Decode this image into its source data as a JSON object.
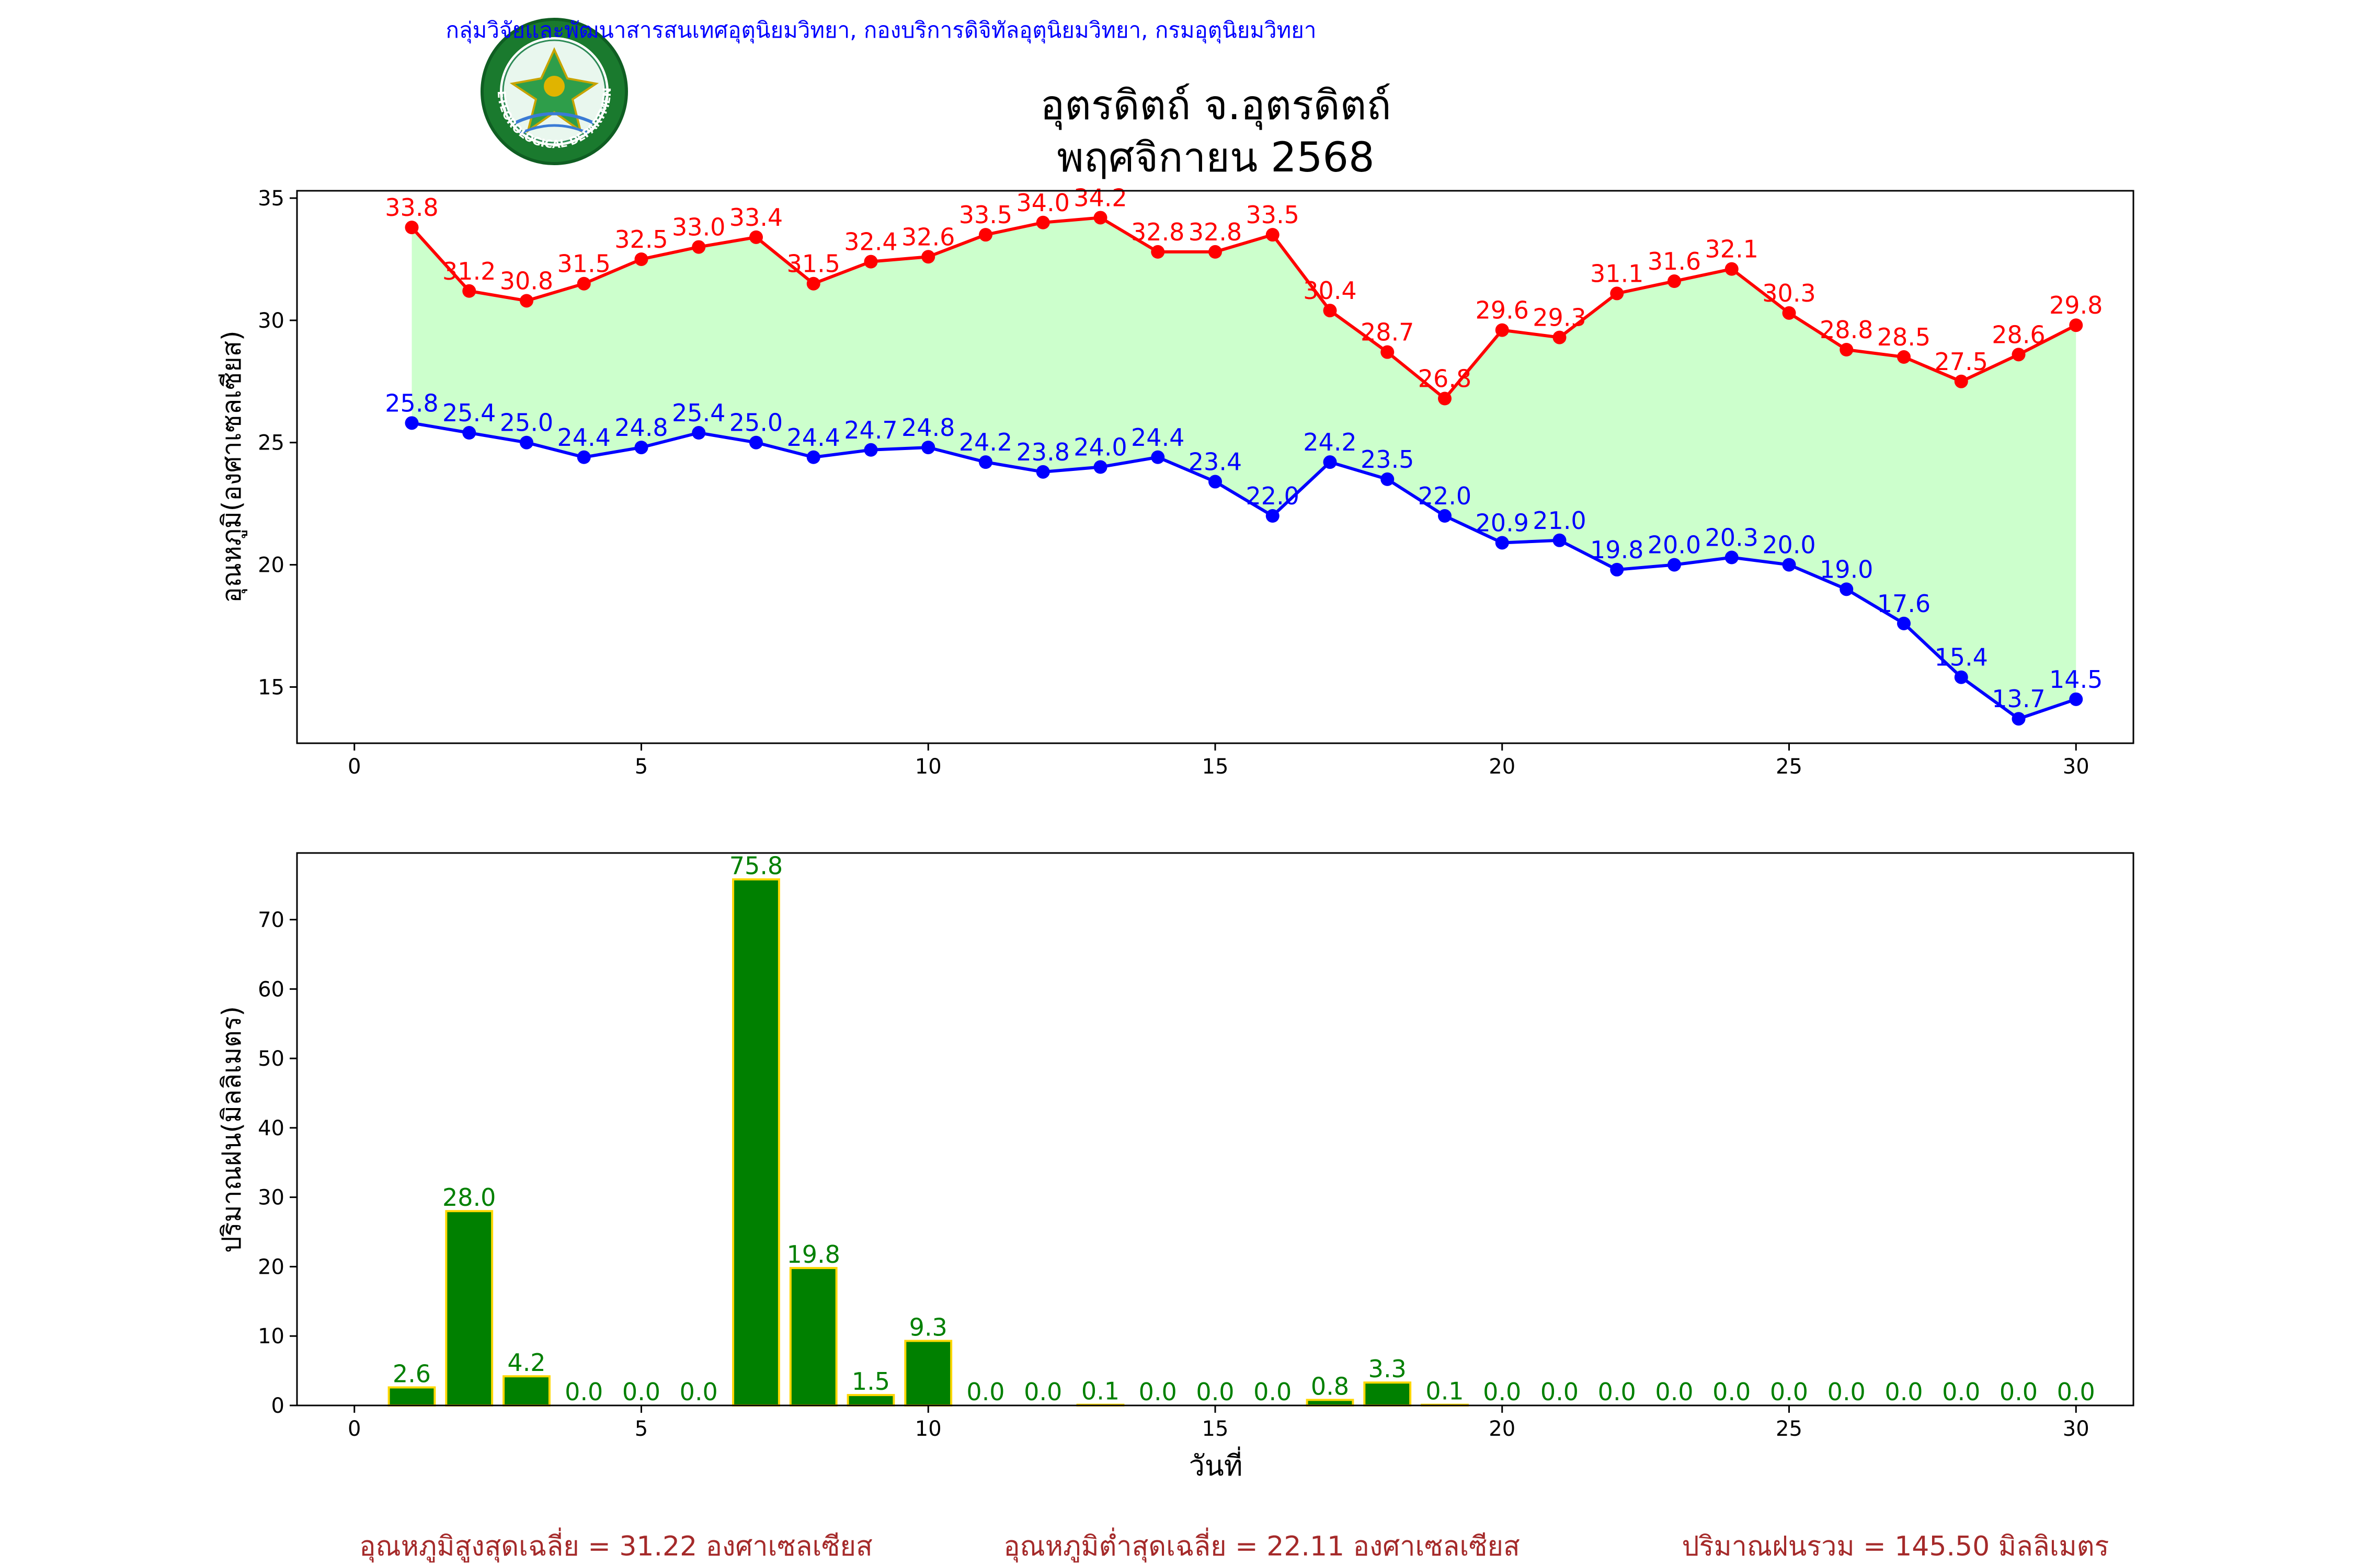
{
  "header": {
    "department_line": "กลุ่มวิจัยและพัฒนาสารสนเทศอุตุนิยมวิทยา, กองบริการดิจิทัลอุตุนิยมวิทยา, กรมอุตุนิยมวิทยา",
    "station_title": "อุตรดิตถ์ จ.อุตรดิตถ์",
    "period_title": "พฤศจิกายน 2568",
    "logo_name": "meteorological-department-logo",
    "logo_text": "METEOROLOGICAL DEPARTMENT"
  },
  "colors": {
    "max_line": "#ff0000",
    "min_line": "#0000ff",
    "fill": "#ccffcc",
    "bar": "#008000",
    "bar_edge": "#ffd700",
    "bar_label": "#008000",
    "header_text": "#0000ff",
    "footer_text": "#a52a2a"
  },
  "chart_data": [
    {
      "type": "line",
      "ylabel": "อุณหภูมิ(องศาเซลเซียส)",
      "xlabel": "",
      "xlim": [
        -1,
        31
      ],
      "ylim": [
        12.7,
        35.3
      ],
      "x_ticks": [
        0,
        5,
        10,
        15,
        20,
        25,
        30
      ],
      "y_ticks": [
        15,
        20,
        25,
        30,
        35
      ],
      "grid": false,
      "x": [
        1,
        2,
        3,
        4,
        5,
        6,
        7,
        8,
        9,
        10,
        11,
        12,
        13,
        14,
        15,
        16,
        17,
        18,
        19,
        20,
        21,
        22,
        23,
        24,
        25,
        26,
        27,
        28,
        29,
        30
      ],
      "series": [
        {
          "key": "max",
          "values": [
            33.8,
            31.2,
            30.8,
            31.5,
            32.5,
            33.0,
            33.4,
            31.5,
            32.4,
            32.6,
            33.5,
            34.0,
            34.2,
            32.8,
            32.8,
            33.5,
            30.4,
            28.7,
            26.8,
            29.6,
            29.3,
            31.1,
            31.6,
            32.1,
            30.3,
            28.8,
            28.5,
            27.5,
            28.6,
            29.8
          ]
        },
        {
          "key": "min",
          "values": [
            25.8,
            25.4,
            25.0,
            24.4,
            24.8,
            25.4,
            25.0,
            24.4,
            24.7,
            24.8,
            24.2,
            23.8,
            24.0,
            24.4,
            23.4,
            22.0,
            24.2,
            23.5,
            22.0,
            20.9,
            21.0,
            19.8,
            20.0,
            20.3,
            20.0,
            19.0,
            17.6,
            15.4,
            13.7,
            14.5
          ]
        }
      ]
    },
    {
      "type": "bar",
      "ylabel": "ปริมาณฝน(มิลลิเมตร)",
      "xlabel": "วันที่",
      "xlim": [
        -1,
        31
      ],
      "ylim": [
        0,
        79.6
      ],
      "x_ticks": [
        0,
        5,
        10,
        15,
        20,
        25,
        30
      ],
      "y_ticks": [
        0,
        10,
        20,
        30,
        40,
        50,
        60,
        70
      ],
      "grid": false,
      "x": [
        1,
        2,
        3,
        4,
        5,
        6,
        7,
        8,
        9,
        10,
        11,
        12,
        13,
        14,
        15,
        16,
        17,
        18,
        19,
        20,
        21,
        22,
        23,
        24,
        25,
        26,
        27,
        28,
        29,
        30
      ],
      "values": [
        2.6,
        28.0,
        4.2,
        0.0,
        0.0,
        0.0,
        75.8,
        19.8,
        1.5,
        9.3,
        0.0,
        0.0,
        0.1,
        0.0,
        0.0,
        0.0,
        0.8,
        3.3,
        0.1,
        0.0,
        0.0,
        0.0,
        0.0,
        0.0,
        0.0,
        0.0,
        0.0,
        0.0,
        0.0,
        0.0
      ]
    }
  ],
  "footer": {
    "avg_max": "อุณหภูมิสูงสุดเฉลี่ย = 31.22 องศาเซลเซียส",
    "avg_min": "อุณหภูมิต่ำสุดเฉลี่ย = 22.11 องศาเซลเซียส",
    "total_rain": "ปริมาณฝนรวม = 145.50 มิลลิเมตร"
  }
}
